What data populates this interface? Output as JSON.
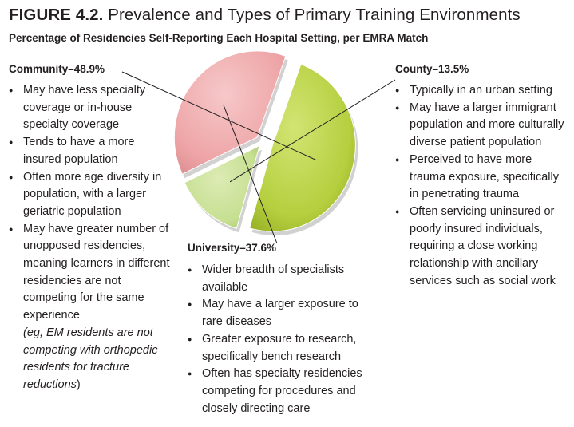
{
  "figure": {
    "label": "FIGURE 4.2.",
    "title": "Prevalence and Types of Primary Training Environments",
    "subtitle": "Percentage of Residencies Self-Reporting Each Hospital Setting, per EMRA Match"
  },
  "community": {
    "label": "Community–48.9%",
    "bullets": [
      "May have less specialty coverage or in-house specialty coverage",
      "Tends to have a more insured population",
      "Often more age diversity in population, with a larger geriatric population"
    ],
    "last_bullet": "May have greater number of unopposed residencies, meaning learners in different residencies are not competing for the same experience",
    "last_bullet_italic": "(eg, EM residents are not competing with orthopedic residents for fracture reductions",
    "last_bullet_close": ")"
  },
  "county": {
    "label": "County–13.5%",
    "bullets": [
      "Typically in an urban setting",
      "May have a larger immigrant population and more culturally diverse patient population",
      "Perceived to have more trauma exposure, specifically in penetrating trauma",
      "Often servicing uninsured or poorly insured individuals, requiring a close working relationship with ancillary services such as social work"
    ]
  },
  "university": {
    "label": "University–37.6%",
    "bullets": [
      "Wider breadth of specialists available",
      "May have a larger exposure to rare diseases",
      "Greater exposure to research, specifically bench research",
      "Often has specialty residencies competing for procedures and closely directing care"
    ]
  },
  "chart_data": {
    "type": "pie",
    "title": "Prevalence and Types of Primary Training Environments",
    "subtitle": "Percentage of Residencies Self-Reporting Each Hospital Setting, per EMRA Match",
    "categories": [
      "Community",
      "County",
      "University"
    ],
    "values": [
      48.9,
      13.5,
      37.6
    ],
    "unit": "%",
    "colors": {
      "Community": "#b5cf3f",
      "County": "#c6df91",
      "University": "#eea4a6"
    }
  }
}
